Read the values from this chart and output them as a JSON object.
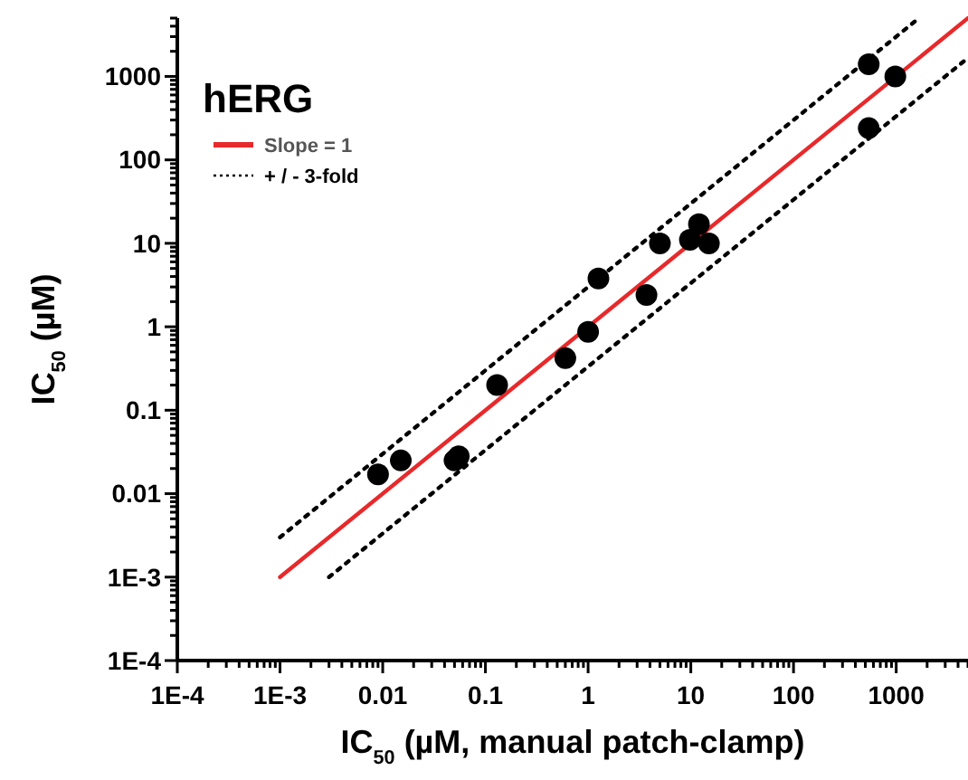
{
  "chart_data": {
    "type": "scatter",
    "title": "hERG",
    "xlabel": "IC$_{50}$ (µM, manual patch-clamp)",
    "ylabel": "IC$_{50}$ (µM)",
    "log": "xy",
    "legend": "top left",
    "marker": "circle",
    "xlim": [
      0.0001,
      5000
    ],
    "ylim": [
      0.0001,
      5000
    ],
    "xticks": [
      {
        "value": 0.0001,
        "label": "1E-4"
      },
      {
        "value": 0.0002,
        "label": null
      },
      {
        "value": 0.0003,
        "label": null
      },
      {
        "value": 0.0004,
        "label": null
      },
      {
        "value": 0.0005,
        "label": null
      },
      {
        "value": 0.0006,
        "label": null
      },
      {
        "value": 0.0007,
        "label": null
      },
      {
        "value": 0.0008,
        "label": null
      },
      {
        "value": 0.0009,
        "label": null
      },
      {
        "value": 0.001,
        "label": "1E-3"
      },
      {
        "value": 0.002,
        "label": null
      },
      {
        "value": 0.003,
        "label": null
      },
      {
        "value": 0.004,
        "label": null
      },
      {
        "value": 0.005,
        "label": null
      },
      {
        "value": 0.006,
        "label": null
      },
      {
        "value": 0.007,
        "label": null
      },
      {
        "value": 0.008,
        "label": null
      },
      {
        "value": 0.009,
        "label": null
      },
      {
        "value": 0.01,
        "label": "0.01"
      },
      {
        "value": 0.02,
        "label": null
      },
      {
        "value": 0.03,
        "label": null
      },
      {
        "value": 0.04,
        "label": null
      },
      {
        "value": 0.05,
        "label": null
      },
      {
        "value": 0.06,
        "label": null
      },
      {
        "value": 0.07,
        "label": null
      },
      {
        "value": 0.08,
        "label": null
      },
      {
        "value": 0.09,
        "label": null
      },
      {
        "value": 0.1,
        "label": "0.1"
      },
      {
        "value": 0.2,
        "label": null
      },
      {
        "value": 0.3,
        "label": null
      },
      {
        "value": 0.4,
        "label": null
      },
      {
        "value": 0.5,
        "label": null
      },
      {
        "value": 0.6,
        "label": null
      },
      {
        "value": 0.7,
        "label": null
      },
      {
        "value": 0.8,
        "label": null
      },
      {
        "value": 0.9,
        "label": null
      },
      {
        "value": 1,
        "label": "1"
      },
      {
        "value": 2,
        "label": null
      },
      {
        "value": 3,
        "label": null
      },
      {
        "value": 4,
        "label": null
      },
      {
        "value": 5,
        "label": null
      },
      {
        "value": 6,
        "label": null
      },
      {
        "value": 7,
        "label": null
      },
      {
        "value": 8,
        "label": null
      },
      {
        "value": 9,
        "label": null
      },
      {
        "value": 10,
        "label": "10"
      },
      {
        "value": 20,
        "label": null
      },
      {
        "value": 30,
        "label": null
      },
      {
        "value": 40,
        "label": null
      },
      {
        "value": 50,
        "label": null
      },
      {
        "value": 60,
        "label": null
      },
      {
        "value": 70,
        "label": null
      },
      {
        "value": 80,
        "label": null
      },
      {
        "value": 90,
        "label": null
      },
      {
        "value": 100,
        "label": "100"
      },
      {
        "value": 200,
        "label": null
      },
      {
        "value": 300,
        "label": null
      },
      {
        "value": 400,
        "label": null
      },
      {
        "value": 500,
        "label": null
      },
      {
        "value": 600,
        "label": null
      },
      {
        "value": 700,
        "label": null
      },
      {
        "value": 800,
        "label": null
      },
      {
        "value": 900,
        "label": null
      },
      {
        "value": 1000,
        "label": "1000"
      },
      {
        "value": 2000,
        "label": null
      },
      {
        "value": 3000,
        "label": null
      },
      {
        "value": 4000,
        "label": null
      },
      {
        "value": 5000,
        "label": null
      }
    ],
    "yticks": [
      {
        "value": 0.0001,
        "label": "1E-4"
      },
      {
        "value": 0.0002,
        "label": null
      },
      {
        "value": 0.0003,
        "label": null
      },
      {
        "value": 0.0004,
        "label": null
      },
      {
        "value": 0.0005,
        "label": null
      },
      {
        "value": 0.0006,
        "label": null
      },
      {
        "value": 0.0007,
        "label": null
      },
      {
        "value": 0.0008,
        "label": null
      },
      {
        "value": 0.0009,
        "label": null
      },
      {
        "value": 0.001,
        "label": "1E-3"
      },
      {
        "value": 0.002,
        "label": null
      },
      {
        "value": 0.003,
        "label": null
      },
      {
        "value": 0.004,
        "label": null
      },
      {
        "value": 0.005,
        "label": null
      },
      {
        "value": 0.006,
        "label": null
      },
      {
        "value": 0.007,
        "label": null
      },
      {
        "value": 0.008,
        "label": null
      },
      {
        "value": 0.009,
        "label": null
      },
      {
        "value": 0.01,
        "label": "0.01"
      },
      {
        "value": 0.02,
        "label": null
      },
      {
        "value": 0.03,
        "label": null
      },
      {
        "value": 0.04,
        "label": null
      },
      {
        "value": 0.05,
        "label": null
      },
      {
        "value": 0.06,
        "label": null
      },
      {
        "value": 0.07,
        "label": null
      },
      {
        "value": 0.08,
        "label": null
      },
      {
        "value": 0.09,
        "label": null
      },
      {
        "value": 0.1,
        "label": "0.1"
      },
      {
        "value": 0.2,
        "label": null
      },
      {
        "value": 0.3,
        "label": null
      },
      {
        "value": 0.4,
        "label": null
      },
      {
        "value": 0.5,
        "label": null
      },
      {
        "value": 0.6,
        "label": null
      },
      {
        "value": 0.7,
        "label": null
      },
      {
        "value": 0.8,
        "label": null
      },
      {
        "value": 0.9,
        "label": null
      },
      {
        "value": 1,
        "label": "1"
      },
      {
        "value": 2,
        "label": null
      },
      {
        "value": 3,
        "label": null
      },
      {
        "value": 4,
        "label": null
      },
      {
        "value": 5,
        "label": null
      },
      {
        "value": 6,
        "label": null
      },
      {
        "value": 7,
        "label": null
      },
      {
        "value": 8,
        "label": null
      },
      {
        "value": 9,
        "label": null
      },
      {
        "value": 10,
        "label": "10"
      },
      {
        "value": 20,
        "label": null
      },
      {
        "value": 30,
        "label": null
      },
      {
        "value": 40,
        "label": null
      },
      {
        "value": 50,
        "label": null
      },
      {
        "value": 60,
        "label": null
      },
      {
        "value": 70,
        "label": null
      },
      {
        "value": 80,
        "label": null
      },
      {
        "value": 90,
        "label": null
      },
      {
        "value": 100,
        "label": "100"
      },
      {
        "value": 200,
        "label": null
      },
      {
        "value": 300,
        "label": null
      },
      {
        "value": 400,
        "label": null
      },
      {
        "value": 500,
        "label": null
      },
      {
        "value": 600,
        "label": null
      },
      {
        "value": 700,
        "label": null
      },
      {
        "value": 800,
        "label": null
      },
      {
        "value": 900,
        "label": null
      },
      {
        "value": 1000,
        "label": "1000"
      },
      {
        "value": 2000,
        "label": null
      },
      {
        "value": 3000,
        "label": null
      },
      {
        "value": 4000,
        "label": null
      },
      {
        "value": 5000,
        "label": null
      }
    ],
    "series": [
      {
        "type": "line",
        "name": "Slope = 1",
        "color": "#e8292b",
        "line_style": "solid",
        "marker": "none",
        "x": [
          0.001,
          5000
        ],
        "values": [
          0.001,
          5000
        ]
      },
      {
        "type": "line",
        "name": "+ / - 3-fold",
        "color": "#000000",
        "line_style": "dotted",
        "marker": "none",
        "x": [
          0.001,
          1600
        ],
        "values": [
          0.003,
          4800
        ]
      },
      {
        "type": "line",
        "color": "#000000",
        "line_style": "dotted",
        "marker": "none",
        "x": [
          0.003,
          5000
        ],
        "values": [
          0.001,
          1667
        ]
      },
      {
        "color": "#000000",
        "x": [
          0.009,
          0.015,
          0.05,
          0.055,
          0.13,
          0.6,
          1.0,
          1.26,
          3.7,
          5.0,
          9.8,
          12,
          15,
          540,
          980,
          540
        ],
        "values": [
          0.017,
          0.025,
          0.025,
          0.028,
          0.2,
          0.42,
          0.87,
          3.8,
          2.4,
          10,
          11,
          17,
          10,
          1400,
          1000,
          240
        ]
      }
    ]
  }
}
